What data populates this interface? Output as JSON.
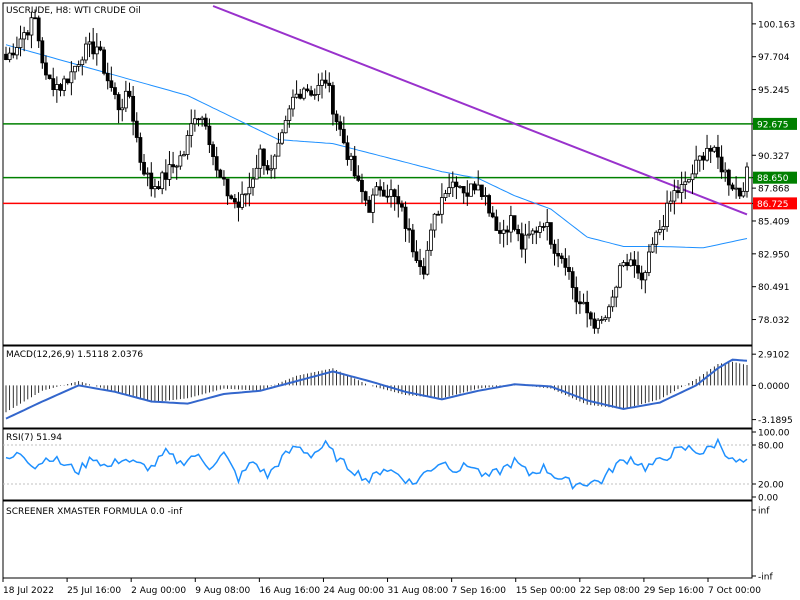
{
  "main_title": "USCRUDE, H8:  WTI CRUDE Oil",
  "colors": {
    "bull_candle": "#ffffff",
    "bear_candle": "#000000",
    "ma_line": "#1e90ff",
    "trendline": "#9932cc",
    "support_resistance": "#008000",
    "key_level": "#ff0000",
    "macd_signal": "#3366cc",
    "rsi_line": "#1e90ff"
  },
  "chart_data": [
    {
      "type": "candlestick",
      "title": "USCRUDE, H8:  WTI CRUDE Oil",
      "ylim": [
        76.5,
        101.5
      ],
      "y_ticks": [
        "100.163",
        "97.704",
        "95.245",
        "92.675",
        "90.327",
        "88.650",
        "87.868",
        "86.725",
        "85.409",
        "82.950",
        "80.491",
        "78.032"
      ],
      "x_ticks": [
        "18 Jul 2022",
        "25 Jul 16:00",
        "2 Aug 00:00",
        "9 Aug 08:00",
        "16 Aug 16:00",
        "24 Aug 00:00",
        "31 Aug 08:00",
        "7 Sep 16:00",
        "15 Sep 00:00",
        "22 Sep 08:00",
        "29 Sep 16:00",
        "7 Oct 00:00"
      ],
      "close_anchors": [
        [
          0,
          97.5
        ],
        [
          5,
          99.5
        ],
        [
          8,
          100.5
        ],
        [
          11,
          96.0
        ],
        [
          15,
          95.5
        ],
        [
          18,
          96.5
        ],
        [
          21,
          98.0
        ],
        [
          25,
          98.5
        ],
        [
          28,
          96.0
        ],
        [
          31,
          94.0
        ],
        [
          34,
          94.8
        ],
        [
          37,
          90.0
        ],
        [
          40,
          88.0
        ],
        [
          43,
          88.5
        ],
        [
          46,
          89.5
        ],
        [
          49,
          90.5
        ],
        [
          52,
          93.5
        ],
        [
          55,
          93.0
        ],
        [
          58,
          89.0
        ],
        [
          61,
          87.5
        ],
        [
          64,
          86.5
        ],
        [
          67,
          88.0
        ],
        [
          70,
          90.5
        ],
        [
          73,
          89.0
        ],
        [
          76,
          91.5
        ],
        [
          79,
          94.5
        ],
        [
          82,
          95.5
        ],
        [
          85,
          95.0
        ],
        [
          88,
          96.0
        ],
        [
          91,
          93.0
        ],
        [
          94,
          90.5
        ],
        [
          97,
          88.0
        ],
        [
          100,
          86.5
        ],
        [
          103,
          88.0
        ],
        [
          106,
          87.5
        ],
        [
          109,
          86.0
        ],
        [
          112,
          83.5
        ],
        [
          115,
          82.0
        ],
        [
          118,
          85.5
        ],
        [
          121,
          88.0
        ],
        [
          124,
          88.5
        ],
        [
          127,
          87.5
        ],
        [
          130,
          88.5
        ],
        [
          133,
          86.5
        ],
        [
          136,
          84.5
        ],
        [
          139,
          85.5
        ],
        [
          142,
          83.5
        ],
        [
          145,
          84.5
        ],
        [
          148,
          85.5
        ],
        [
          151,
          83.5
        ],
        [
          154,
          82.5
        ],
        [
          157,
          79.5
        ],
        [
          160,
          78.5
        ],
        [
          163,
          77.5
        ],
        [
          166,
          78.5
        ],
        [
          169,
          81.5
        ],
        [
          172,
          82.5
        ],
        [
          175,
          80.5
        ],
        [
          178,
          83.5
        ],
        [
          181,
          85.5
        ],
        [
          184,
          87.5
        ],
        [
          187,
          88.0
        ],
        [
          190,
          89.5
        ],
        [
          193,
          91.0
        ],
        [
          196,
          90.0
        ],
        [
          199,
          88.5
        ],
        [
          202,
          87.5
        ],
        [
          204,
          88.9
        ]
      ],
      "n_candles": 205,
      "moving_average_anchors": [
        [
          0,
          98.6
        ],
        [
          25,
          96.7
        ],
        [
          50,
          94.8
        ],
        [
          75,
          91.5
        ],
        [
          90,
          91.2
        ],
        [
          100,
          90.5
        ],
        [
          110,
          89.8
        ],
        [
          120,
          89.1
        ],
        [
          130,
          88.6
        ],
        [
          140,
          87.3
        ],
        [
          150,
          86.3
        ],
        [
          160,
          84.2
        ],
        [
          170,
          83.5
        ],
        [
          180,
          83.5
        ],
        [
          192,
          83.4
        ],
        [
          204,
          84.1
        ]
      ],
      "trendline": {
        "from": [
          57,
          101.5
        ],
        "to": [
          204,
          85.9
        ]
      },
      "horizontal_levels": [
        {
          "value": 92.675,
          "label": "92.675",
          "color": "#008000"
        },
        {
          "value": 88.65,
          "label": "88.650",
          "color": "#008000"
        },
        {
          "value": 86.725,
          "label": "86.725",
          "color": "#ff0000"
        }
      ]
    },
    {
      "type": "histogram+line",
      "title": "MACD(12,26,9) 1.5118 2.0376",
      "ylim": [
        -3.6,
        3.3
      ],
      "y_ticks": [
        "2.9102",
        "0.0000",
        "-3.1895"
      ],
      "macd_anchors": [
        [
          0,
          -2.5
        ],
        [
          10,
          -0.5
        ],
        [
          20,
          0.4
        ],
        [
          30,
          -0.6
        ],
        [
          40,
          -1.6
        ],
        [
          50,
          -1.2
        ],
        [
          60,
          -0.3
        ],
        [
          70,
          -0.5
        ],
        [
          80,
          0.9
        ],
        [
          90,
          1.6
        ],
        [
          100,
          0.0
        ],
        [
          110,
          -0.9
        ],
        [
          120,
          -1.2
        ],
        [
          130,
          -0.3
        ],
        [
          140,
          0.1
        ],
        [
          150,
          -0.3
        ],
        [
          160,
          -1.8
        ],
        [
          170,
          -2.2
        ],
        [
          180,
          -1.3
        ],
        [
          190,
          0.6
        ],
        [
          196,
          2.0
        ],
        [
          200,
          2.2
        ],
        [
          204,
          1.9
        ]
      ],
      "signal_anchors": [
        [
          0,
          -3.1
        ],
        [
          10,
          -1.5
        ],
        [
          20,
          0.0
        ],
        [
          30,
          -0.6
        ],
        [
          40,
          -1.5
        ],
        [
          50,
          -1.7
        ],
        [
          60,
          -0.8
        ],
        [
          70,
          -0.5
        ],
        [
          80,
          0.4
        ],
        [
          90,
          1.3
        ],
        [
          100,
          0.4
        ],
        [
          110,
          -0.6
        ],
        [
          120,
          -1.3
        ],
        [
          130,
          -0.5
        ],
        [
          140,
          0.1
        ],
        [
          150,
          -0.1
        ],
        [
          160,
          -1.4
        ],
        [
          170,
          -2.2
        ],
        [
          180,
          -1.6
        ],
        [
          190,
          0.0
        ],
        [
          196,
          1.6
        ],
        [
          200,
          2.4
        ],
        [
          204,
          2.3
        ]
      ]
    },
    {
      "type": "line",
      "title": "RSI(7) 51.94",
      "ylim": [
        0,
        100
      ],
      "y_ticks": [
        "100.00",
        "80.00",
        "20.00",
        "0.00"
      ],
      "levels": [
        80,
        20
      ],
      "rsi_anchors": [
        [
          0,
          55
        ],
        [
          4,
          68
        ],
        [
          8,
          48
        ],
        [
          12,
          62
        ],
        [
          16,
          50
        ],
        [
          20,
          40
        ],
        [
          24,
          62
        ],
        [
          28,
          45
        ],
        [
          32,
          60
        ],
        [
          36,
          50
        ],
        [
          40,
          45
        ],
        [
          44,
          68
        ],
        [
          48,
          52
        ],
        [
          52,
          65
        ],
        [
          56,
          47
        ],
        [
          60,
          66
        ],
        [
          64,
          28
        ],
        [
          68,
          55
        ],
        [
          72,
          32
        ],
        [
          76,
          60
        ],
        [
          80,
          78
        ],
        [
          84,
          65
        ],
        [
          88,
          80
        ],
        [
          92,
          55
        ],
        [
          96,
          40
        ],
        [
          100,
          25
        ],
        [
          104,
          45
        ],
        [
          108,
          35
        ],
        [
          112,
          20
        ],
        [
          116,
          40
        ],
        [
          120,
          55
        ],
        [
          124,
          42
        ],
        [
          128,
          50
        ],
        [
          132,
          30
        ],
        [
          136,
          40
        ],
        [
          140,
          55
        ],
        [
          144,
          35
        ],
        [
          148,
          45
        ],
        [
          152,
          30
        ],
        [
          156,
          20
        ],
        [
          160,
          22
        ],
        [
          164,
          25
        ],
        [
          168,
          50
        ],
        [
          172,
          60
        ],
        [
          176,
          45
        ],
        [
          180,
          55
        ],
        [
          184,
          70
        ],
        [
          188,
          75
        ],
        [
          192,
          68
        ],
        [
          196,
          85
        ],
        [
          200,
          55
        ],
        [
          204,
          52
        ]
      ]
    },
    {
      "type": "line",
      "title": "SCREENER XMASTER FORMULA 0.0 -inf",
      "y_ticks": [
        "inf",
        "-inf"
      ],
      "values": []
    }
  ]
}
